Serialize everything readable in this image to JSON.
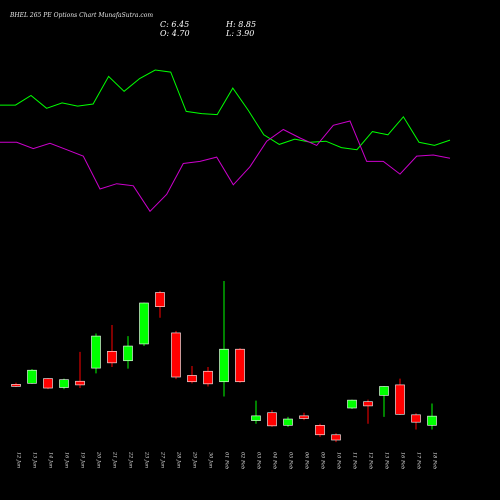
{
  "chart_data": {
    "type": "candlestick",
    "title": "BHEL 265 PE Options  Chart MunafaSutra.com",
    "ohlc_labels": {
      "close": "C: 6.45",
      "high": "H: 8.85",
      "open": "O: 4.70",
      "low": "L: 3.90"
    },
    "categories": [
      "12 Jan",
      "13 Jan",
      "14 Jan",
      "16 Jan",
      "19 Jan",
      "20 Jan",
      "21 Jan",
      "22 Jan",
      "23 Jan",
      "27 Jan",
      "28 Jan",
      "29 Jan",
      "30 Jan",
      "01 Feb",
      "02 Feb",
      "03 Feb",
      "04 Feb",
      "05 Feb",
      "06 Feb",
      "09 Feb",
      "10 Feb",
      "11 Feb",
      "12 Feb",
      "13 Feb",
      "16 Feb",
      "17 Feb",
      "18 Feb"
    ],
    "candles": [
      {
        "o": 12.5,
        "h": 12.8,
        "l": 12.0,
        "c": 12.2
      },
      {
        "o": 12.7,
        "h": 15.4,
        "l": 12.6,
        "c": 15.2
      },
      {
        "o": 13.6,
        "h": 13.7,
        "l": 11.6,
        "c": 11.8
      },
      {
        "o": 11.9,
        "h": 13.6,
        "l": 11.6,
        "c": 13.4
      },
      {
        "o": 13.1,
        "h": 18.7,
        "l": 11.8,
        "c": 12.4
      },
      {
        "o": 15.6,
        "h": 22.2,
        "l": 14.6,
        "c": 21.7
      },
      {
        "o": 18.8,
        "h": 23.8,
        "l": 15.8,
        "c": 16.6
      },
      {
        "o": 17.0,
        "h": 21.7,
        "l": 15.5,
        "c": 19.8
      },
      {
        "o": 20.2,
        "h": 28.1,
        "l": 19.8,
        "c": 28.0
      },
      {
        "o": 30.0,
        "h": 30.3,
        "l": 25.2,
        "c": 27.3
      },
      {
        "o": 22.3,
        "h": 22.7,
        "l": 13.5,
        "c": 13.9
      },
      {
        "o": 14.2,
        "h": 16.0,
        "l": 12.7,
        "c": 13.0
      },
      {
        "o": 15.0,
        "h": 15.8,
        "l": 12.1,
        "c": 12.6
      },
      {
        "o": 13.0,
        "h": 32.2,
        "l": 10.2,
        "c": 19.2
      },
      {
        "o": 19.2,
        "h": 19.4,
        "l": 12.8,
        "c": 13.0
      },
      {
        "o": 5.6,
        "h": 9.4,
        "l": 5.0,
        "c": 6.5
      },
      {
        "o": 7.1,
        "h": 7.6,
        "l": 4.4,
        "c": 4.6
      },
      {
        "o": 4.7,
        "h": 6.3,
        "l": 4.4,
        "c": 5.9
      },
      {
        "o": 6.5,
        "h": 7.1,
        "l": 5.7,
        "c": 6.0
      },
      {
        "o": 4.7,
        "h": 5.0,
        "l": 2.5,
        "c": 2.9
      },
      {
        "o": 2.9,
        "h": 3.2,
        "l": 1.5,
        "c": 1.9
      },
      {
        "o": 8.0,
        "h": 9.6,
        "l": 7.8,
        "c": 9.5
      },
      {
        "o": 9.2,
        "h": 9.6,
        "l": 5.0,
        "c": 8.4
      },
      {
        "o": 10.4,
        "h": 12.2,
        "l": 6.3,
        "c": 12.1
      },
      {
        "o": 12.4,
        "h": 13.6,
        "l": 6.7,
        "c": 6.8
      },
      {
        "o": 6.7,
        "h": 7.0,
        "l": 3.9,
        "c": 5.3
      },
      {
        "o": 4.7,
        "h": 8.85,
        "l": 3.9,
        "c": 6.45
      }
    ],
    "ylim": [
      0,
      40
    ],
    "line_series": [
      {
        "color": "#00ff00",
        "values": [
          33,
          33,
          24,
          36,
          31,
          34,
          32,
          6,
          20,
          8,
          0,
          2,
          39,
          41,
          42,
          17,
          38,
          61,
          70,
          65,
          68,
          67,
          73,
          75,
          58,
          61,
          44,
          68,
          71,
          66
        ]
      },
      {
        "color": "#cc00cc",
        "values": [
          68,
          68,
          74,
          69,
          75,
          81,
          112,
          107,
          109,
          133,
          117,
          88,
          86,
          82,
          108,
          91,
          67,
          56,
          64,
          71,
          52,
          48,
          86,
          86,
          98,
          81,
          80,
          83
        ]
      }
    ],
    "line_ylim": [
      0,
      160
    ],
    "line_value_note": "line values are read as relative levels on the upper panel"
  }
}
